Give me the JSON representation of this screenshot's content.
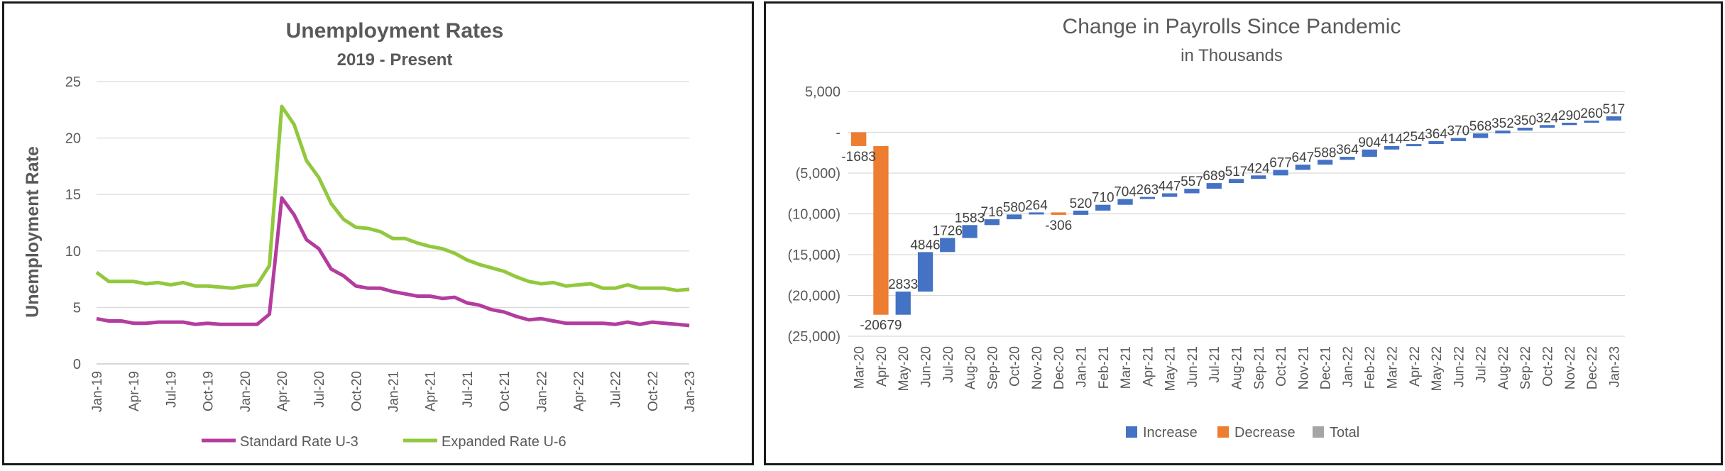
{
  "chart_data": [
    {
      "type": "line",
      "title": "Unemployment Rates",
      "subtitle": "2019 - Present",
      "xlabel": "",
      "ylabel": "Unemployment Rate",
      "ylim": [
        0,
        25
      ],
      "yticks": [
        "0",
        "5",
        "10",
        "15",
        "20",
        "25"
      ],
      "grid": true,
      "legend_position": "bottom",
      "x_tick_labels": [
        "Jan-19",
        "Apr-19",
        "Jul-19",
        "Oct-19",
        "Jan-20",
        "Apr-20",
        "Jul-20",
        "Oct-20",
        "Jan-21",
        "Apr-21",
        "Jul-21",
        "Oct-21",
        "Jan-22",
        "Apr-22",
        "Jul-22",
        "Oct-22",
        "Jan-23"
      ],
      "series": [
        {
          "name": "Standard Rate U-3",
          "color": "#b33d9e",
          "values": [
            4.0,
            3.8,
            3.8,
            3.6,
            3.6,
            3.7,
            3.7,
            3.7,
            3.5,
            3.6,
            3.5,
            3.5,
            3.5,
            3.5,
            4.4,
            14.7,
            13.2,
            11.0,
            10.2,
            8.4,
            7.8,
            6.9,
            6.7,
            6.7,
            6.4,
            6.2,
            6.0,
            6.0,
            5.8,
            5.9,
            5.4,
            5.2,
            4.8,
            4.6,
            4.2,
            3.9,
            4.0,
            3.8,
            3.6,
            3.6,
            3.6,
            3.6,
            3.5,
            3.7,
            3.5,
            3.7,
            3.6,
            3.5,
            3.4
          ]
        },
        {
          "name": "Expanded Rate U-6",
          "color": "#92c83e",
          "values": [
            8.1,
            7.3,
            7.3,
            7.3,
            7.1,
            7.2,
            7.0,
            7.2,
            6.9,
            6.9,
            6.8,
            6.7,
            6.9,
            7.0,
            8.7,
            22.8,
            21.2,
            18.0,
            16.5,
            14.2,
            12.8,
            12.1,
            12.0,
            11.7,
            11.1,
            11.1,
            10.7,
            10.4,
            10.2,
            9.8,
            9.2,
            8.8,
            8.5,
            8.2,
            7.7,
            7.3,
            7.1,
            7.2,
            6.9,
            7.0,
            7.1,
            6.7,
            6.7,
            7.0,
            6.7,
            6.7,
            6.7,
            6.5,
            6.6
          ]
        }
      ]
    },
    {
      "type": "waterfall",
      "title": "Change in Payrolls Since Pandemic",
      "subtitle": "in Thousands",
      "xlabel": "",
      "ylabel": "",
      "ylim": [
        -25000,
        5000
      ],
      "yticks": [
        "5,000",
        "-",
        "(5,000)",
        "(10,000)",
        "(15,000)",
        "(20,000)",
        "(25,000)"
      ],
      "grid": true,
      "legend_position": "bottom",
      "categories": [
        "Mar-20",
        "Apr-20",
        "May-20",
        "Jun-20",
        "Jul-20",
        "Aug-20",
        "Sep-20",
        "Oct-20",
        "Nov-20",
        "Dec-20",
        "Jan-21",
        "Feb-21",
        "Mar-21",
        "Apr-21",
        "May-21",
        "Jun-21",
        "Jul-21",
        "Aug-21",
        "Sep-21",
        "Oct-21",
        "Nov-21",
        "Dec-21",
        "Jan-22",
        "Feb-22",
        "Mar-22",
        "Apr-22",
        "May-22",
        "Jun-22",
        "Jul-22",
        "Aug-22",
        "Sep-22",
        "Oct-22",
        "Nov-22",
        "Dec-22",
        "Jan-23"
      ],
      "values": [
        -1683,
        -20679,
        2833,
        4846,
        1726,
        1583,
        716,
        580,
        264,
        -306,
        520,
        710,
        704,
        263,
        447,
        557,
        689,
        517,
        424,
        677,
        647,
        588,
        364,
        904,
        414,
        254,
        364,
        370,
        568,
        352,
        350,
        324,
        290,
        260,
        517
      ],
      "value_labels": [
        "-1683",
        "-20679",
        "2833",
        "4846",
        "1726",
        "1583",
        "716",
        "580",
        "264",
        "-306",
        "520",
        "710",
        "704",
        "263",
        "447",
        "557",
        "689",
        "517",
        "424",
        "677",
        "647",
        "588",
        "364",
        "904",
        "414",
        "254",
        "364",
        "370",
        "568",
        "352",
        "350",
        "324",
        "290",
        "260",
        "517"
      ],
      "legend": [
        {
          "name": "Increase",
          "color": "#4472c4"
        },
        {
          "name": "Decrease",
          "color": "#ed7d31"
        },
        {
          "name": "Total",
          "color": "#a5a5a5"
        }
      ]
    }
  ]
}
